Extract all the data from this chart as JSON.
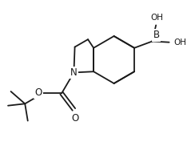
{
  "bg_color": "#ffffff",
  "line_color": "#1a1a1a",
  "line_width": 1.3,
  "font_size": 7.5,
  "figsize": [
    2.39,
    1.82
  ],
  "dpi": 100,
  "xlim": [
    0,
    10
  ],
  "ylim": [
    0,
    7.6
  ]
}
